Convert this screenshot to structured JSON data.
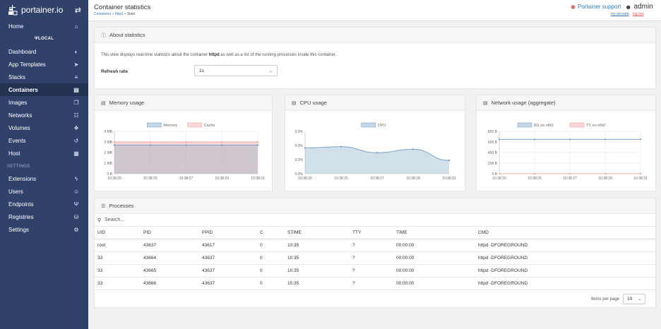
{
  "brand": {
    "name": "portainer.io"
  },
  "sidebar": {
    "items": [
      {
        "label": "Home",
        "icon": "home-icon",
        "glyph": "⌂"
      },
      {
        "label": "Dashboard",
        "icon": "tachometer-icon",
        "glyph": "◐"
      },
      {
        "label": "App Templates",
        "icon": "rocket-icon",
        "glyph": "➤"
      },
      {
        "label": "Stacks",
        "icon": "th-list-icon",
        "glyph": "≡"
      },
      {
        "label": "Containers",
        "icon": "server-icon",
        "glyph": "▤",
        "active": true
      },
      {
        "label": "Images",
        "icon": "clone-icon",
        "glyph": "❐"
      },
      {
        "label": "Networks",
        "icon": "sitemap-icon",
        "glyph": "☷"
      },
      {
        "label": "Volumes",
        "icon": "cubes-icon",
        "glyph": "❖"
      },
      {
        "label": "Events",
        "icon": "history-icon",
        "glyph": "↺"
      },
      {
        "label": "Host",
        "icon": "th-icon",
        "glyph": "▦"
      },
      {
        "label": "Extensions",
        "icon": "bolt-icon",
        "glyph": "ϟ"
      },
      {
        "label": "Users",
        "icon": "users-icon",
        "glyph": "☺"
      },
      {
        "label": "Endpoints",
        "icon": "plug-icon",
        "glyph": "Ψ"
      },
      {
        "label": "Registries",
        "icon": "database-icon",
        "glyph": "⛁"
      },
      {
        "label": "Settings",
        "icon": "cogs-icon",
        "glyph": "⚙"
      }
    ],
    "endpoint": "LOCAL",
    "section": "SETTINGS"
  },
  "header": {
    "title": "Container statistics",
    "breadcrumb": [
      "Containers",
      "httpd",
      "Stats"
    ],
    "support": "Portainer support",
    "user": "admin",
    "my_account": "my account",
    "log_out": "log out"
  },
  "about": {
    "title": "About statistics",
    "text_prefix": "This view displays real-time statistics about the container ",
    "container": "httpd",
    "text_suffix": " as well as a list of the running processes inside this container.",
    "refresh_label": "Refresh rate",
    "refresh_value": "1s"
  },
  "charts": {
    "memory": {
      "title": "Memory usage"
    },
    "cpu": {
      "title": "CPU usage"
    },
    "network": {
      "title": "Network usage (aggregate)"
    }
  },
  "chart_data": [
    {
      "type": "area",
      "title": "Memory usage",
      "x": [
        "10:38:20",
        "10:38:25",
        "10:38:27",
        "10:38:29",
        "10:38:31"
      ],
      "yticks": [
        "4 MB",
        "3 MB",
        "2 MB",
        "1 MB",
        "0 B"
      ],
      "ylim": [
        0,
        4
      ],
      "yunit": "MB",
      "series": [
        {
          "name": "Memory",
          "values": [
            2.7,
            2.7,
            2.7,
            2.7,
            2.7
          ],
          "color": "#7ea5c4"
        },
        {
          "name": "Cache",
          "values": [
            3.0,
            3.0,
            3.0,
            3.0,
            3.0
          ],
          "color": "#f4a7a7"
        }
      ],
      "legend": "top-center",
      "grid": true
    },
    {
      "type": "area",
      "title": "CPU usage",
      "x": [
        "10:38:20",
        "10:38:25",
        "10:38:27",
        "10:38:29",
        "10:38:31"
      ],
      "yticks": [
        "0.0%",
        "0.0%",
        "0.0%",
        "0.0%"
      ],
      "ylim": [
        0,
        0.4
      ],
      "series": [
        {
          "name": "CPU",
          "values": [
            0.243,
            0.255,
            0.198,
            0.231,
            0.125
          ],
          "color": "#7ea5c4"
        }
      ],
      "legend": "top-center",
      "grid": false
    },
    {
      "type": "line",
      "title": "Network usage (aggregate)",
      "x": [
        "10:38:20",
        "10:38:25",
        "10:38:27",
        "10:38:29",
        "10:38:31"
      ],
      "yticks": [
        "800 B",
        "600 B",
        "400 B",
        "200 B",
        "0 B"
      ],
      "ylim": [
        0,
        800
      ],
      "series": [
        {
          "name": "RX on eth0",
          "values": [
            648,
            648,
            648,
            648,
            648
          ],
          "color": "#7ea5c4"
        },
        {
          "name": "TX on eth0",
          "values": [
            0,
            0,
            0,
            0,
            0
          ],
          "color": "#f4a7a7"
        }
      ],
      "legend": "top-center",
      "grid": true
    }
  ],
  "processes": {
    "title": "Processes",
    "search_placeholder": "Search...",
    "columns": [
      "UID",
      "PID",
      "PPID",
      "C",
      "STIME",
      "TTY",
      "TIME",
      "CMD"
    ],
    "rows": [
      [
        "root",
        "43637",
        "43617",
        "0",
        "10:35",
        "?",
        "00:00:00",
        "httpd -DFOREGROUND"
      ],
      [
        "33",
        "43664",
        "43637",
        "0",
        "10:35",
        "?",
        "00:00:00",
        "httpd -DFOREGROUND"
      ],
      [
        "33",
        "43665",
        "43637",
        "0",
        "10:35",
        "?",
        "00:00:00",
        "httpd -DFOREGROUND"
      ],
      [
        "33",
        "43666",
        "43637",
        "0",
        "10:35",
        "?",
        "00:00:00",
        "httpd -DFOREGROUND"
      ]
    ],
    "items_per_page_label": "Items per page",
    "items_per_page_value": "10"
  },
  "colors": {
    "sidebar": "#30426a",
    "sidebar_active": "#233152",
    "link": "#337ab7",
    "danger": "#d9534f"
  }
}
